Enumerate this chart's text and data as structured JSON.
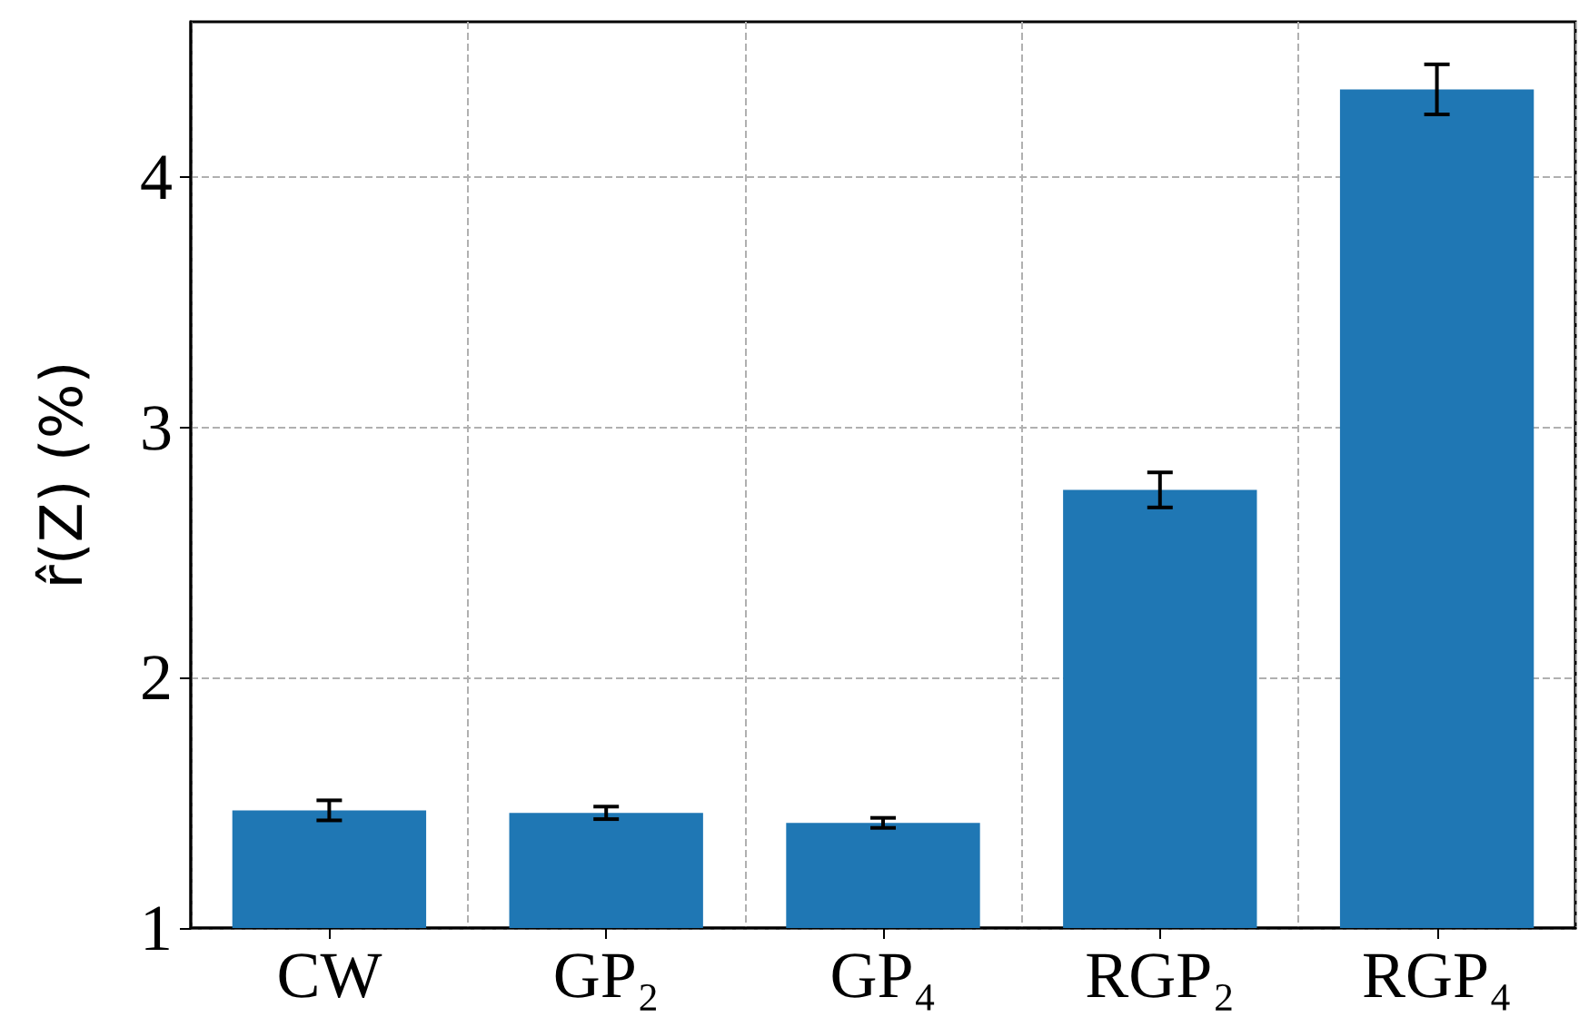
{
  "chart_data": {
    "type": "bar",
    "ylabel": "r̂(Z) (%)",
    "categories": [
      "CW",
      "GP₂",
      "GP₄",
      "RGP₂",
      "RGP₄"
    ],
    "values": [
      1.47,
      1.46,
      1.42,
      2.75,
      4.35
    ],
    "errors": [
      0.04,
      0.025,
      0.02,
      0.07,
      0.1
    ],
    "color": "#1f77b4",
    "ylim": [
      1,
      4.62
    ],
    "yticks": [
      1,
      2,
      3,
      4
    ],
    "grid": true
  }
}
